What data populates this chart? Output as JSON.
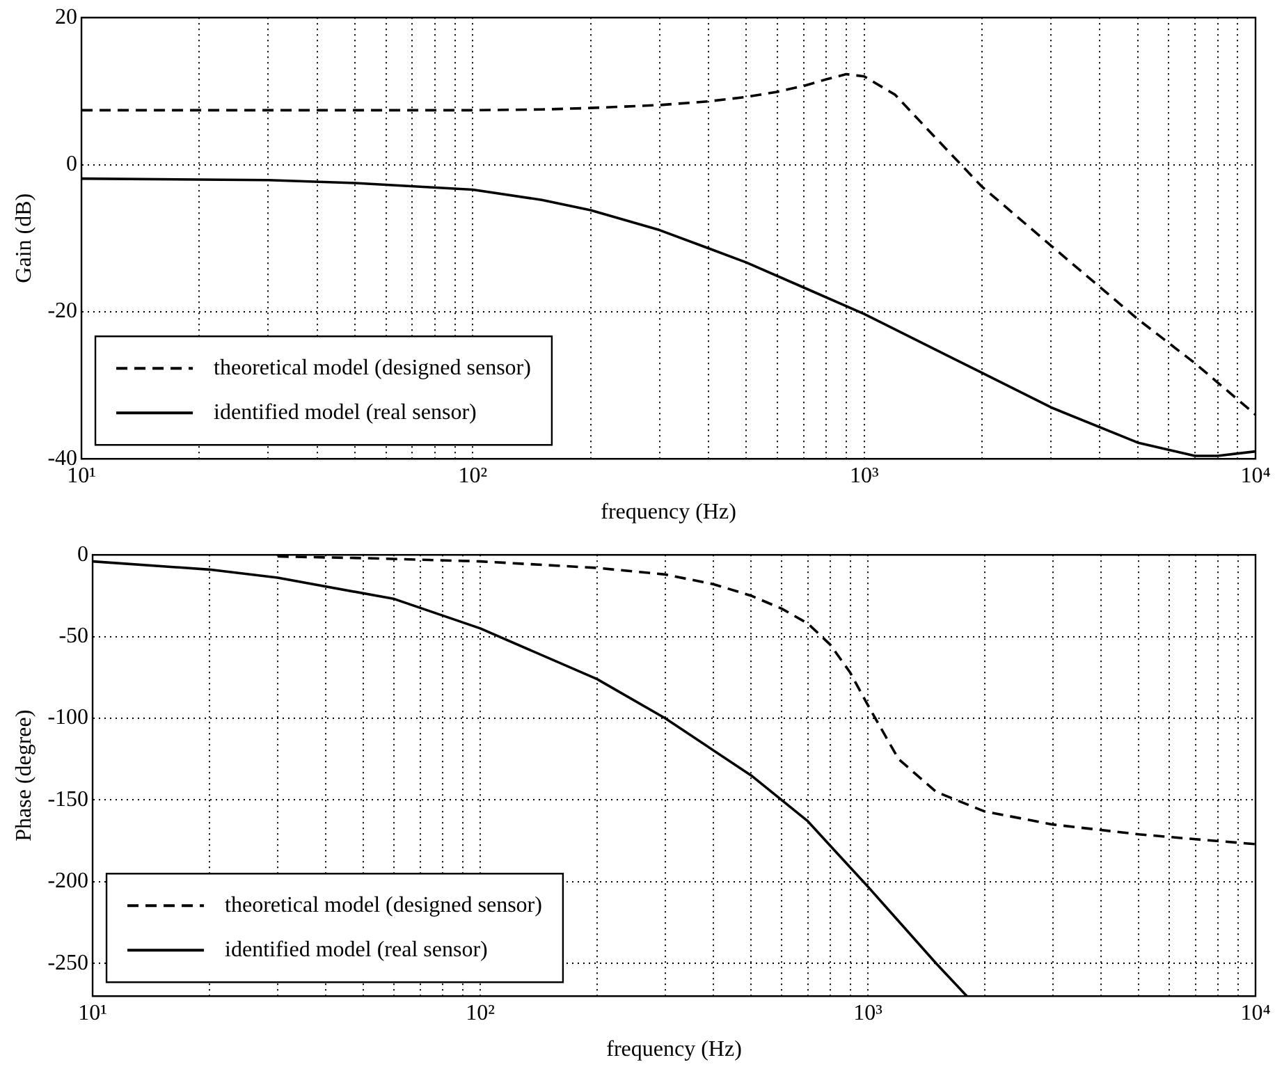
{
  "chart_data": [
    {
      "type": "line",
      "xlabel": "frequency (Hz)",
      "ylabel": "Gain (dB)",
      "log": "x",
      "grid": true,
      "legend": "bottom left",
      "xlim": [
        10,
        10000
      ],
      "xticks": [
        {
          "value": 10,
          "label": "10¹"
        },
        {
          "value": 20,
          "label": null
        },
        {
          "value": 30,
          "label": null
        },
        {
          "value": 40,
          "label": null
        },
        {
          "value": 50,
          "label": null
        },
        {
          "value": 60,
          "label": null
        },
        {
          "value": 70,
          "label": null
        },
        {
          "value": 80,
          "label": null
        },
        {
          "value": 90,
          "label": null
        },
        {
          "value": 100,
          "label": "10²"
        },
        {
          "value": 200,
          "label": null
        },
        {
          "value": 300,
          "label": null
        },
        {
          "value": 400,
          "label": null
        },
        {
          "value": 500,
          "label": null
        },
        {
          "value": 600,
          "label": null
        },
        {
          "value": 700,
          "label": null
        },
        {
          "value": 800,
          "label": null
        },
        {
          "value": 900,
          "label": null
        },
        {
          "value": 1000,
          "label": "10³"
        },
        {
          "value": 2000,
          "label": null
        },
        {
          "value": 3000,
          "label": null
        },
        {
          "value": 4000,
          "label": null
        },
        {
          "value": 5000,
          "label": null
        },
        {
          "value": 6000,
          "label": null
        },
        {
          "value": 7000,
          "label": null
        },
        {
          "value": 8000,
          "label": null
        },
        {
          "value": 9000,
          "label": null
        },
        {
          "value": 10000,
          "label": "10⁴"
        }
      ],
      "ylim": [
        -40,
        20
      ],
      "yticks": [
        -40,
        -20,
        0,
        20
      ],
      "series": [
        {
          "name": "theoretical model (designed sensor)",
          "color": "#000000",
          "line_style": "dashed",
          "x": [
            10,
            30,
            100,
            150,
            200,
            300,
            400,
            500,
            600,
            700,
            800,
            900,
            1000,
            1200,
            1500,
            2000,
            3000,
            5000,
            7000,
            10000
          ],
          "values": [
            7.4,
            7.4,
            7.4,
            7.5,
            7.7,
            8.1,
            8.6,
            9.2,
            9.9,
            10.7,
            11.6,
            12.3,
            12.0,
            9.5,
            4.0,
            -3.0,
            -11.0,
            -21.0,
            -27.0,
            -34.0
          ]
        },
        {
          "name": "identified model (real sensor)",
          "color": "#000000",
          "line_style": "solid",
          "x": [
            10,
            30,
            50,
            100,
            150,
            200,
            300,
            500,
            700,
            1000,
            1500,
            2000,
            3000,
            5000,
            7000,
            8000,
            10000
          ],
          "values": [
            -1.9,
            -2.1,
            -2.5,
            -3.4,
            -4.8,
            -6.2,
            -8.9,
            -13.3,
            -16.7,
            -20.3,
            -25.0,
            -28.3,
            -33.0,
            -37.8,
            -39.6,
            -39.6,
            -39.0
          ]
        }
      ]
    },
    {
      "type": "line",
      "xlabel": "frequency (Hz)",
      "ylabel": "Phase (degree)",
      "log": "x",
      "grid": true,
      "legend": "bottom left",
      "xlim": [
        10,
        10000
      ],
      "xticks": [
        {
          "value": 10,
          "label": "10¹"
        },
        {
          "value": 20,
          "label": null
        },
        {
          "value": 30,
          "label": null
        },
        {
          "value": 40,
          "label": null
        },
        {
          "value": 50,
          "label": null
        },
        {
          "value": 60,
          "label": null
        },
        {
          "value": 70,
          "label": null
        },
        {
          "value": 80,
          "label": null
        },
        {
          "value": 90,
          "label": null
        },
        {
          "value": 100,
          "label": "10²"
        },
        {
          "value": 200,
          "label": null
        },
        {
          "value": 300,
          "label": null
        },
        {
          "value": 400,
          "label": null
        },
        {
          "value": 500,
          "label": null
        },
        {
          "value": 600,
          "label": null
        },
        {
          "value": 700,
          "label": null
        },
        {
          "value": 800,
          "label": null
        },
        {
          "value": 900,
          "label": null
        },
        {
          "value": 1000,
          "label": "10³"
        },
        {
          "value": 2000,
          "label": null
        },
        {
          "value": 3000,
          "label": null
        },
        {
          "value": 4000,
          "label": null
        },
        {
          "value": 5000,
          "label": null
        },
        {
          "value": 6000,
          "label": null
        },
        {
          "value": 7000,
          "label": null
        },
        {
          "value": 8000,
          "label": null
        },
        {
          "value": 9000,
          "label": null
        },
        {
          "value": 10000,
          "label": "10⁴"
        }
      ],
      "ylim": [
        -270,
        0
      ],
      "yticks": [
        -250,
        -200,
        -150,
        -100,
        -50,
        0
      ],
      "series": [
        {
          "name": "theoretical model (designed sensor)",
          "color": "#000000",
          "line_style": "dashed",
          "x": [
            30,
            50,
            100,
            200,
            300,
            400,
            500,
            600,
            700,
            800,
            900,
            1000,
            1200,
            1500,
            2000,
            3000,
            5000,
            7000,
            10000
          ],
          "values": [
            -1,
            -2,
            -4,
            -8,
            -12,
            -18,
            -25,
            -33,
            -42,
            -55,
            -72,
            -92,
            -125,
            -145,
            -157,
            -165,
            -171,
            -174,
            -177
          ]
        },
        {
          "name": "identified model (real sensor)",
          "color": "#000000",
          "line_style": "solid",
          "x": [
            10,
            20,
            30,
            60,
            100,
            200,
            300,
            500,
            700,
            800,
            1000,
            1500,
            1800
          ],
          "values": [
            -4,
            -9,
            -14,
            -27,
            -45,
            -76,
            -100,
            -135,
            -163,
            -178,
            -203,
            -250,
            -270
          ]
        }
      ]
    }
  ]
}
